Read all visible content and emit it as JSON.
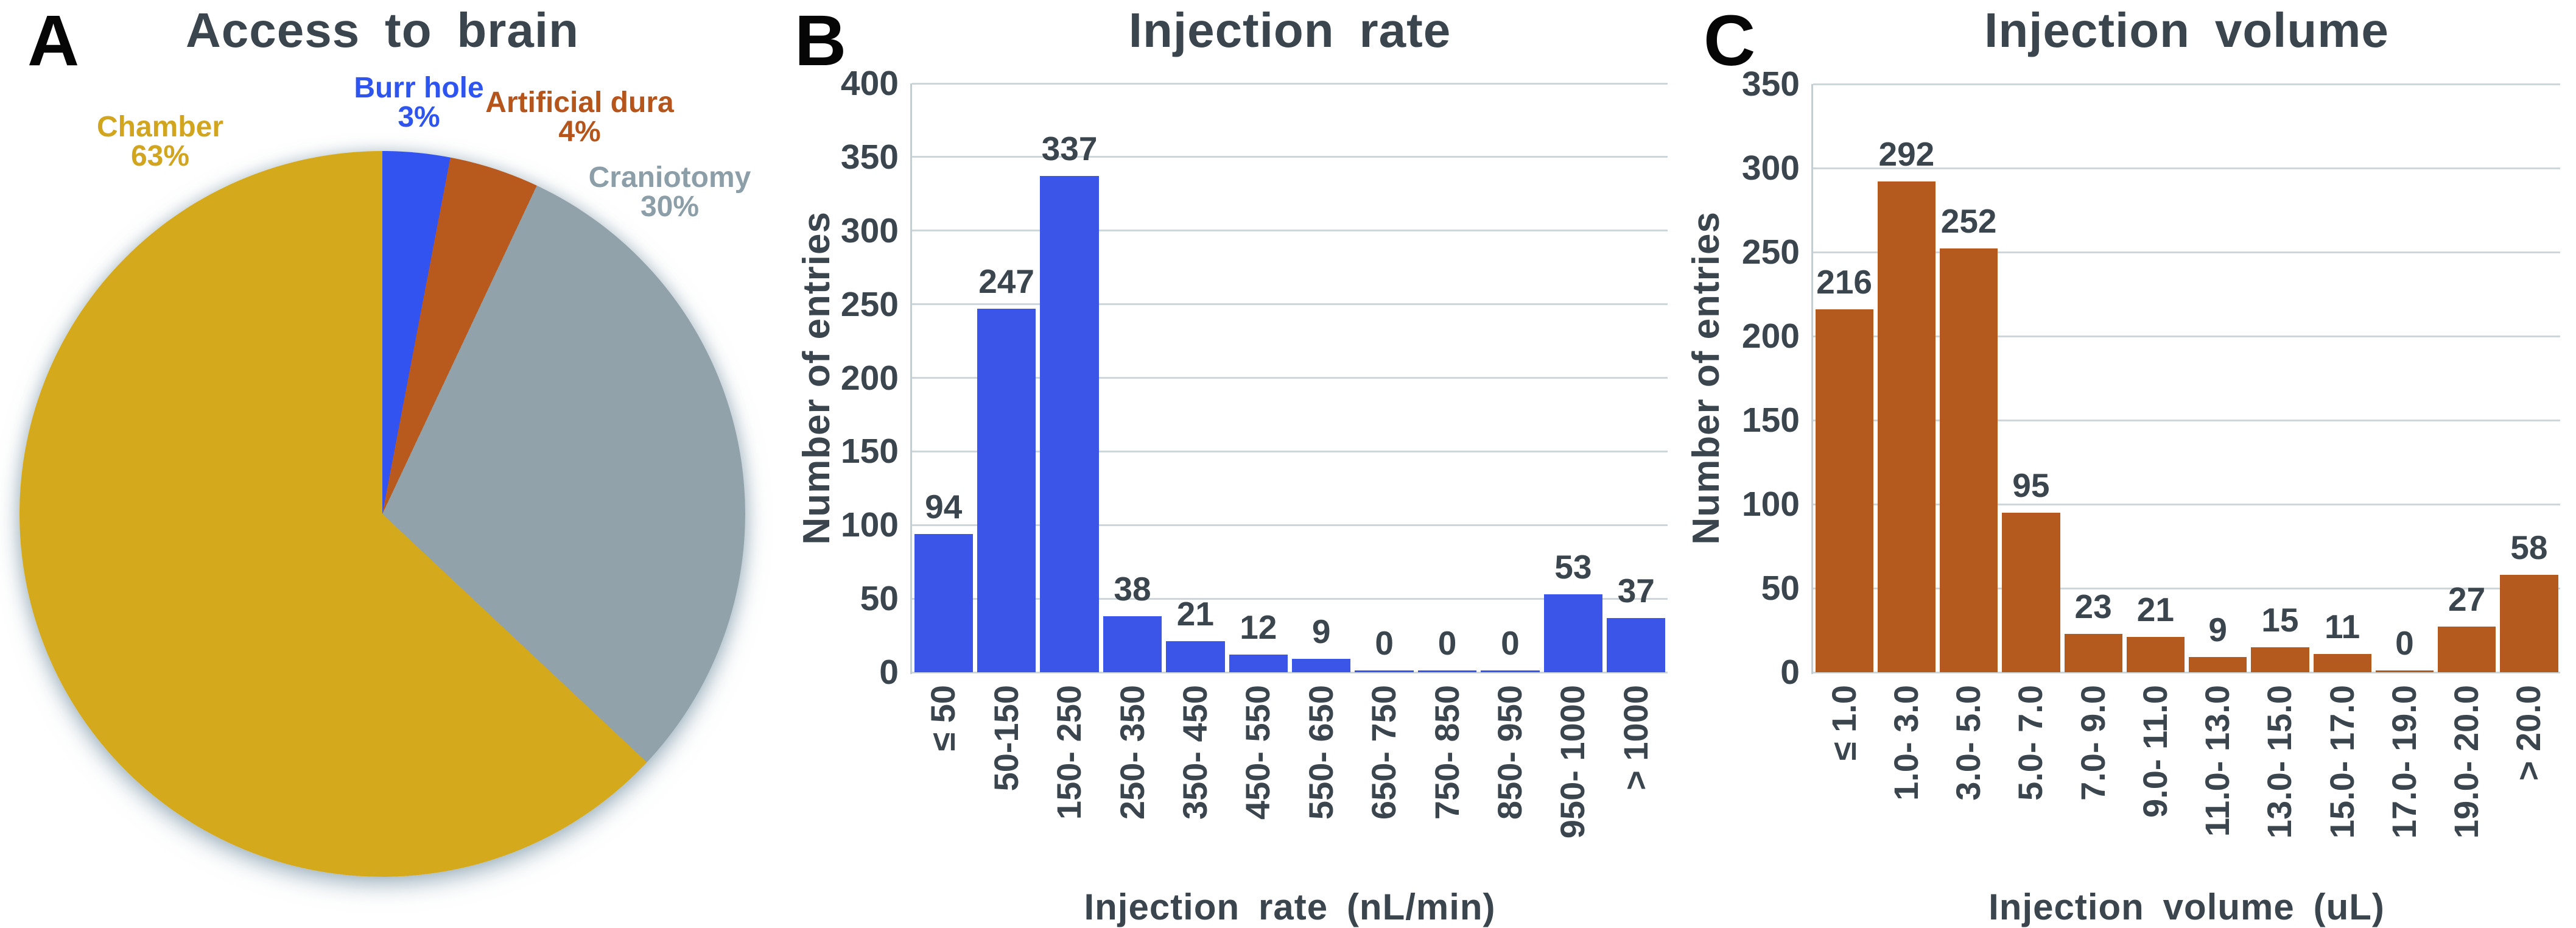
{
  "colors": {
    "text_dark": "#3B454E",
    "panel_letter": "#060606",
    "gridline": "#CDD6DA",
    "axis_line": "#C3CED3",
    "bar_blue": "#3C55E9",
    "bar_rust": "#B45A1E",
    "pie_gold": "#D4A91C",
    "pie_blue": "#3353F0",
    "pie_rust": "#B8591D",
    "pie_gray": "#92A2AA",
    "background": "#FFFFFF"
  },
  "panels": {
    "a": {
      "letter": "A"
    },
    "b": {
      "letter": "B"
    },
    "c": {
      "letter": "C"
    }
  },
  "chart_data": [
    {
      "type": "pie",
      "panel": "A",
      "title": "Access to brain",
      "start_angle_deg": 0,
      "clockwise": true,
      "slices": [
        {
          "label": "Burr hole",
          "value": 3,
          "pct_label": "3%",
          "color": "#3353F0",
          "label_color": "#2F55F0"
        },
        {
          "label": "Artificial dura",
          "value": 4,
          "pct_label": "4%",
          "color": "#B8591D",
          "label_color": "#B5551B"
        },
        {
          "label": "Craniotomy",
          "value": 30,
          "pct_label": "30%",
          "color": "#92A2AA",
          "label_color": "#8C9EA8"
        },
        {
          "label": "Chamber",
          "value": 63,
          "pct_label": "63%",
          "color": "#D4A91C",
          "label_color": "#D2A51E"
        }
      ]
    },
    {
      "type": "bar",
      "panel": "B",
      "title": "Injection rate",
      "categories": [
        "≤ 50",
        "50-150",
        "150- 250",
        "250- 350",
        "350- 450",
        "450- 550",
        "550- 650",
        "650- 750",
        "750- 850",
        "850- 950",
        "950- 1000",
        "> 1000"
      ],
      "values": [
        94,
        247,
        337,
        38,
        21,
        12,
        9,
        0,
        0,
        0,
        53,
        37
      ],
      "xlabel": "Injection rate (nL/min)",
      "ylabel": "Number of entries",
      "ylim": [
        0,
        400
      ],
      "ytick_step": 50,
      "yticks": [
        0,
        50,
        100,
        150,
        200,
        250,
        300,
        350,
        400
      ],
      "bar_color": "#3C55E9",
      "grid": true,
      "legend": "none"
    },
    {
      "type": "bar",
      "panel": "C",
      "title": "Injection volume",
      "categories": [
        "≤ 1.0",
        "1.0- 3.0",
        "3.0- 5.0",
        "5.0- 7.0",
        "7.0- 9.0",
        "9.0- 11.0",
        "11.0- 13.0",
        "13.0- 15.0",
        "15.0- 17.0",
        "17.0- 19.0",
        "19.0- 20.0",
        "> 20.0"
      ],
      "values": [
        216,
        292,
        252,
        95,
        23,
        21,
        9,
        15,
        11,
        0,
        27,
        58
      ],
      "xlabel": "Injection volume (uL)",
      "ylabel": "Number of entries",
      "ylim": [
        0,
        350
      ],
      "ytick_step": 50,
      "yticks": [
        0,
        50,
        100,
        150,
        200,
        250,
        300,
        350
      ],
      "bar_color": "#B45A1E",
      "grid": true,
      "legend": "none"
    }
  ]
}
